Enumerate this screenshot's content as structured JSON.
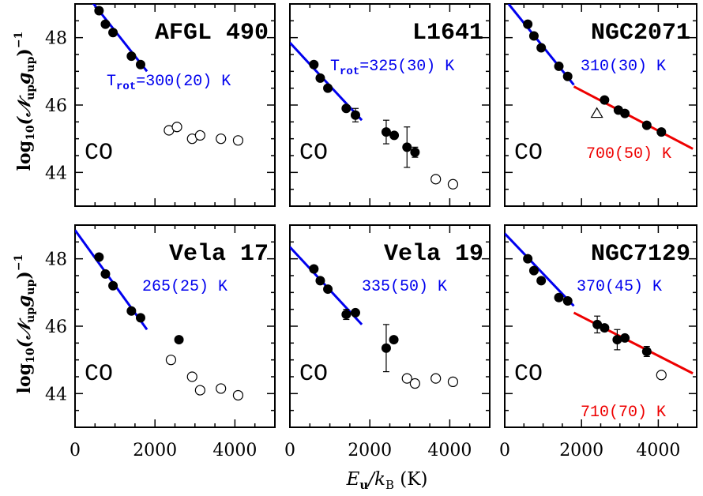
{
  "figure": {
    "ylabel_prefix": "log",
    "ylabel_sub": "10",
    "ylabel_body": "(𝒩",
    "ylabel_up1": "up",
    "ylabel_g": "g",
    "ylabel_up2": "up",
    "ylabel_close": ")",
    "ylabel_exp": "−1",
    "xlabel_main": "E",
    "xlabel_sub1": "u",
    "xlabel_slash": "/k",
    "xlabel_sub2": "B",
    "xlabel_unit": " (K)"
  },
  "chart_data": [
    {
      "type": "scatter",
      "title": "AFGL 490",
      "species": "CO",
      "xlim": [
        0,
        5000
      ],
      "ylim": [
        43,
        49
      ],
      "xticks": [
        0,
        2000,
        4000
      ],
      "yticks": [
        44,
        46,
        48
      ],
      "xtick_labels": [
        "0",
        "2000",
        "4000"
      ],
      "ytick_labels": [
        "44",
        "46",
        "48"
      ],
      "filled": [
        {
          "x": 600,
          "y": 48.8
        },
        {
          "x": 760,
          "y": 48.4
        },
        {
          "x": 950,
          "y": 48.15
        },
        {
          "x": 1410,
          "y": 47.45
        },
        {
          "x": 1640,
          "y": 47.2
        }
      ],
      "open": [
        {
          "x": 2350,
          "y": 45.25
        },
        {
          "x": 2550,
          "y": 45.35
        },
        {
          "x": 2930,
          "y": 45.0
        },
        {
          "x": 3130,
          "y": 45.1
        },
        {
          "x": 3650,
          "y": 45.0
        },
        {
          "x": 4080,
          "y": 44.95
        }
      ],
      "open_triangles": [],
      "errorbars": [],
      "fits": [
        {
          "color": "#0000ee",
          "x0": 400,
          "y0": 49.1,
          "x1": 1800,
          "y1": 47.0,
          "label_prefix": "T",
          "label_sub": "rot",
          "label": "=300(20) K"
        }
      ]
    },
    {
      "type": "scatter",
      "title": "L1641",
      "species": "CO",
      "xlim": [
        0,
        5000
      ],
      "ylim": [
        43,
        49
      ],
      "xticks": [
        0,
        2000,
        4000
      ],
      "yticks": [
        44,
        46,
        48
      ],
      "xtick_labels": [
        "0",
        "2000",
        "4000"
      ],
      "ytick_labels": [
        "44",
        "46",
        "48"
      ],
      "filled": [
        {
          "x": 600,
          "y": 47.2
        },
        {
          "x": 760,
          "y": 46.8
        },
        {
          "x": 950,
          "y": 46.5
        },
        {
          "x": 1410,
          "y": 45.9
        },
        {
          "x": 1640,
          "y": 45.7
        },
        {
          "x": 2410,
          "y": 45.2
        },
        {
          "x": 2610,
          "y": 45.1
        },
        {
          "x": 2930,
          "y": 44.75
        },
        {
          "x": 3130,
          "y": 44.6
        }
      ],
      "open": [
        {
          "x": 3650,
          "y": 43.8
        },
        {
          "x": 4080,
          "y": 43.65
        }
      ],
      "open_triangles": [],
      "errorbars": [
        {
          "x": 1640,
          "lo": 45.5,
          "hi": 45.9
        },
        {
          "x": 2410,
          "lo": 44.85,
          "hi": 45.55
        },
        {
          "x": 2930,
          "lo": 44.15,
          "hi": 45.35
        },
        {
          "x": 3130,
          "lo": 44.45,
          "hi": 44.75
        }
      ],
      "fits": [
        {
          "color": "#0000ee",
          "x0": 0,
          "y0": 47.85,
          "x1": 1800,
          "y1": 45.55,
          "label_prefix": "T",
          "label_sub": "rot",
          "label": "=325(30) K"
        }
      ]
    },
    {
      "type": "scatter",
      "title": "NGC2071",
      "species": "CO",
      "xlim": [
        0,
        5000
      ],
      "ylim": [
        43,
        49
      ],
      "xticks": [
        0,
        2000,
        4000
      ],
      "yticks": [
        44,
        46,
        48
      ],
      "xtick_labels": [
        "0",
        "2000",
        "4000"
      ],
      "ytick_labels": [
        "44",
        "46",
        "48"
      ],
      "filled": [
        {
          "x": 600,
          "y": 48.4
        },
        {
          "x": 760,
          "y": 48.05
        },
        {
          "x": 950,
          "y": 47.7
        },
        {
          "x": 1410,
          "y": 47.15
        },
        {
          "x": 1640,
          "y": 46.85
        },
        {
          "x": 2600,
          "y": 46.15
        },
        {
          "x": 2960,
          "y": 45.85
        },
        {
          "x": 3130,
          "y": 45.75
        },
        {
          "x": 3700,
          "y": 45.4
        },
        {
          "x": 4080,
          "y": 45.2
        }
      ],
      "open": [],
      "open_triangles": [
        {
          "x": 2400,
          "y": 45.75
        }
      ],
      "errorbars": [],
      "fits": [
        {
          "color": "#0000ee",
          "x0": 100,
          "y0": 49.0,
          "x1": 1800,
          "y1": 46.6,
          "label_prefix": "",
          "label_sub": "",
          "label": "310(30) K"
        },
        {
          "color": "#ee0000",
          "x0": 1800,
          "y0": 46.55,
          "x1": 4900,
          "y1": 44.7,
          "label_prefix": "",
          "label_sub": "",
          "label": "700(50) K"
        }
      ]
    },
    {
      "type": "scatter",
      "title": "Vela 17",
      "species": "CO",
      "xlim": [
        0,
        5000
      ],
      "ylim": [
        43,
        49
      ],
      "xticks": [
        0,
        2000,
        4000
      ],
      "yticks": [
        44,
        46,
        48
      ],
      "xtick_labels": [
        "0",
        "2000",
        "4000"
      ],
      "ytick_labels": [
        "44",
        "46",
        "48"
      ],
      "filled": [
        {
          "x": 600,
          "y": 48.05
        },
        {
          "x": 760,
          "y": 47.55
        },
        {
          "x": 950,
          "y": 47.2
        },
        {
          "x": 1410,
          "y": 46.45
        },
        {
          "x": 1640,
          "y": 46.25
        },
        {
          "x": 2600,
          "y": 45.6
        }
      ],
      "open": [
        {
          "x": 2400,
          "y": 45.0
        },
        {
          "x": 2930,
          "y": 44.5
        },
        {
          "x": 3130,
          "y": 44.1
        },
        {
          "x": 3650,
          "y": 44.15
        },
        {
          "x": 4080,
          "y": 43.95
        }
      ],
      "open_triangles": [],
      "errorbars": [],
      "fits": [
        {
          "color": "#0000ee",
          "x0": 0,
          "y0": 48.85,
          "x1": 1800,
          "y1": 45.9,
          "label_prefix": "",
          "label_sub": "",
          "label": "265(25) K"
        }
      ]
    },
    {
      "type": "scatter",
      "title": "Vela 19",
      "species": "CO",
      "xlim": [
        0,
        5000
      ],
      "ylim": [
        43,
        49
      ],
      "xticks": [
        0,
        2000,
        4000
      ],
      "yticks": [
        44,
        46,
        48
      ],
      "xtick_labels": [
        "0",
        "2000",
        "4000"
      ],
      "ytick_labels": [
        "44",
        "46",
        "48"
      ],
      "filled": [
        {
          "x": 600,
          "y": 47.7
        },
        {
          "x": 760,
          "y": 47.35
        },
        {
          "x": 950,
          "y": 47.1
        },
        {
          "x": 1410,
          "y": 46.35
        },
        {
          "x": 1640,
          "y": 46.4
        },
        {
          "x": 2410,
          "y": 45.35
        },
        {
          "x": 2600,
          "y": 45.6
        }
      ],
      "open": [
        {
          "x": 2930,
          "y": 44.45
        },
        {
          "x": 3130,
          "y": 44.3
        },
        {
          "x": 3650,
          "y": 44.45
        },
        {
          "x": 4080,
          "y": 44.35
        }
      ],
      "open_triangles": [],
      "errorbars": [
        {
          "x": 1410,
          "lo": 46.2,
          "hi": 46.5
        },
        {
          "x": 2410,
          "lo": 44.65,
          "hi": 46.05
        }
      ],
      "fits": [
        {
          "color": "#0000ee",
          "x0": 0,
          "y0": 48.35,
          "x1": 1800,
          "y1": 46.05,
          "label_prefix": "",
          "label_sub": "",
          "label": "335(50) K"
        }
      ]
    },
    {
      "type": "scatter",
      "title": "NGC7129",
      "species": "CO",
      "xlim": [
        0,
        5000
      ],
      "ylim": [
        43,
        49
      ],
      "xticks": [
        0,
        2000,
        4000
      ],
      "yticks": [
        44,
        46,
        48
      ],
      "xtick_labels": [
        "0",
        "2000",
        "4000"
      ],
      "ytick_labels": [
        "44",
        "46",
        "48"
      ],
      "filled": [
        {
          "x": 600,
          "y": 48.0
        },
        {
          "x": 760,
          "y": 47.65
        },
        {
          "x": 950,
          "y": 47.35
        },
        {
          "x": 1410,
          "y": 46.85
        },
        {
          "x": 1640,
          "y": 46.75
        },
        {
          "x": 2410,
          "y": 46.05
        },
        {
          "x": 2600,
          "y": 45.95
        },
        {
          "x": 2930,
          "y": 45.6
        },
        {
          "x": 3130,
          "y": 45.65
        },
        {
          "x": 3700,
          "y": 45.25
        }
      ],
      "open": [
        {
          "x": 4080,
          "y": 44.55
        }
      ],
      "open_triangles": [],
      "errorbars": [
        {
          "x": 2410,
          "lo": 45.8,
          "hi": 46.3
        },
        {
          "x": 2930,
          "lo": 45.3,
          "hi": 45.9
        },
        {
          "x": 3700,
          "lo": 45.1,
          "hi": 45.4
        }
      ],
      "fits": [
        {
          "color": "#0000ee",
          "x0": 0,
          "y0": 48.75,
          "x1": 1800,
          "y1": 46.6,
          "label_prefix": "",
          "label_sub": "",
          "label": "370(45) K"
        },
        {
          "color": "#ee0000",
          "x0": 1800,
          "y0": 46.4,
          "x1": 4900,
          "y1": 44.6,
          "label_prefix": "",
          "label_sub": "",
          "label": "710(70) K"
        }
      ]
    }
  ]
}
